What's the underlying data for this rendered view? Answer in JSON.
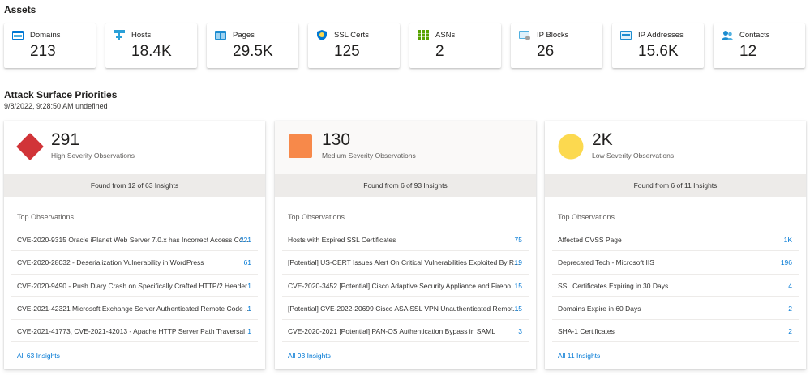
{
  "assets": {
    "title": "Assets",
    "tiles": [
      {
        "label": "Domains",
        "value": "213",
        "icon": "domains-icon",
        "color": "#0078d4"
      },
      {
        "label": "Hosts",
        "value": "18.4K",
        "icon": "hosts-icon",
        "color": "#2aa0d8"
      },
      {
        "label": "Pages",
        "value": "29.5K",
        "icon": "pages-icon",
        "color": "#1c8cd0"
      },
      {
        "label": "SSL Certs",
        "value": "125",
        "icon": "ssl-cert-icon",
        "color": "#0078d4"
      },
      {
        "label": "ASNs",
        "value": "2",
        "icon": "asn-icon",
        "color": "#57a300"
      },
      {
        "label": "IP Blocks",
        "value": "26",
        "icon": "ip-blocks-icon",
        "color": "#50b0e0"
      },
      {
        "label": "IP Addresses",
        "value": "15.6K",
        "icon": "ip-addresses-icon",
        "color": "#1c8cd0"
      },
      {
        "label": "Contacts",
        "value": "12",
        "icon": "contacts-icon",
        "color": "#1c8cd0"
      }
    ]
  },
  "priorities": {
    "title": "Attack Surface Priorities",
    "timestamp": "9/8/2022, 9:28:50 AM undefined",
    "cards": [
      {
        "count": "291",
        "severity_label": "High Severity Observations",
        "color": "#d13438",
        "shape": "diamond",
        "found": "Found from 12 of 63 Insights",
        "top_label": "Top Observations",
        "rows": [
          {
            "name": "CVE-2020-9315 Oracle iPlanet Web Server 7.0.x has Incorrect Access Co...",
            "count": "221"
          },
          {
            "name": "CVE-2020-28032 - Deserialization Vulnerability in WordPress",
            "count": "61"
          },
          {
            "name": "CVE-2020-9490 - Push Diary Crash on Specifically Crafted HTTP/2 Header",
            "count": "1"
          },
          {
            "name": "CVE-2021-42321 Microsoft Exchange Server Authenticated Remote Code ...",
            "count": "1"
          },
          {
            "name": "CVE-2021-41773, CVE-2021-42013 - Apache HTTP Server Path Traversal",
            "count": "1"
          }
        ],
        "all_link": "All 63 Insights"
      },
      {
        "count": "130",
        "severity_label": "Medium Severity Observations",
        "color": "#f7894a",
        "shape": "square",
        "found": "Found from 6 of 93 Insights",
        "top_label": "Top Observations",
        "rows": [
          {
            "name": "Hosts with Expired SSL Certificates",
            "count": "75"
          },
          {
            "name": "[Potential] US-CERT Issues Alert On Critical Vulnerabilities Exploited By R...",
            "count": "19"
          },
          {
            "name": "CVE-2020-3452 [Potential] Cisco Adaptive Security Appliance and Firepo...",
            "count": "15"
          },
          {
            "name": "[Potential] CVE-2022-20699 Cisco ASA SSL VPN Unauthenticated Remot...",
            "count": "15"
          },
          {
            "name": "CVE-2020-2021 [Potential] PAN-OS Authentication Bypass in SAML",
            "count": "3"
          }
        ],
        "all_link": "All 93 Insights"
      },
      {
        "count": "2K",
        "severity_label": "Low Severity Observations",
        "color": "#fcd94f",
        "shape": "circle",
        "found": "Found from 6 of 11 Insights",
        "top_label": "Top Observations",
        "rows": [
          {
            "name": "Affected CVSS Page",
            "count": "1K"
          },
          {
            "name": "Deprecated Tech - Microsoft IIS",
            "count": "196"
          },
          {
            "name": "SSL Certificates Expiring in 30 Days",
            "count": "4"
          },
          {
            "name": "Domains Expire in 60 Days",
            "count": "2"
          },
          {
            "name": "SHA-1 Certificates",
            "count": "2"
          }
        ],
        "all_link": "All 11 Insights"
      }
    ]
  },
  "colors": {
    "link": "#0078d4",
    "found_band": "#edebe9"
  }
}
